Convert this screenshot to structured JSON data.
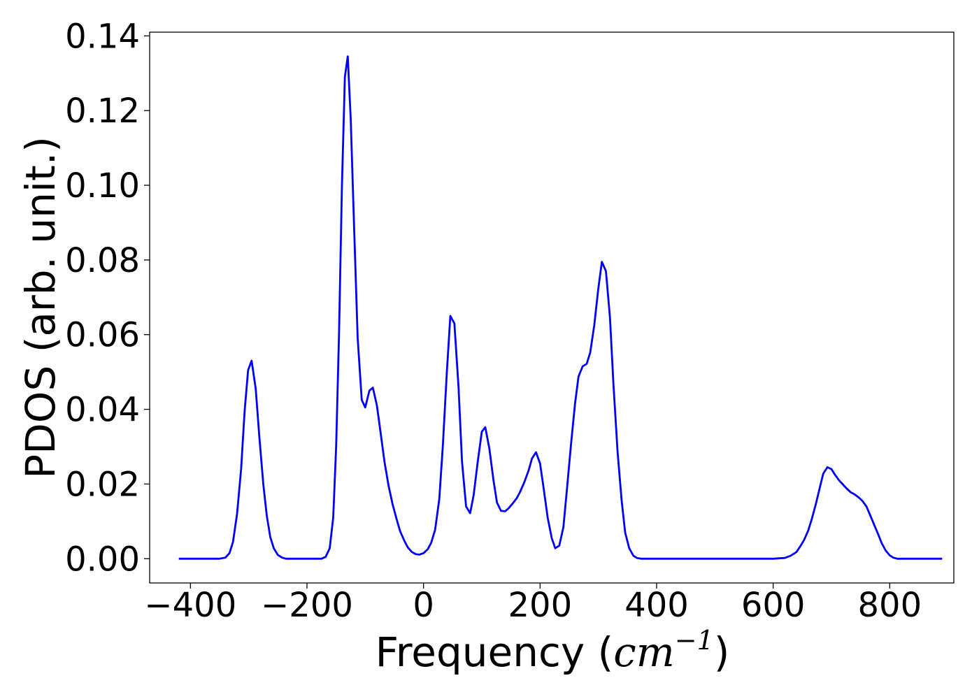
{
  "chart_data": {
    "type": "line",
    "xlabel": {
      "text": "Frequency (",
      "unit_base": "cm",
      "unit_exponent": "−1",
      "close": ")"
    },
    "ylabel": "PDOS (arb. unit.)",
    "xlim": [
      -470,
      910
    ],
    "ylim": [
      -0.0065,
      0.141
    ],
    "x_ticks": [
      -400,
      -200,
      0,
      200,
      400,
      600,
      800
    ],
    "x_tick_labels": [
      "−400",
      "−200",
      "0",
      "200",
      "400",
      "600",
      "800"
    ],
    "y_ticks": [
      0.0,
      0.02,
      0.04,
      0.06,
      0.08,
      0.1,
      0.12,
      0.14
    ],
    "y_tick_labels": [
      "0.00",
      "0.02",
      "0.04",
      "0.06",
      "0.08",
      "0.10",
      "0.12",
      "0.14"
    ],
    "grid": false,
    "series": [
      {
        "color": "#0000ff",
        "x": [
          -420,
          -380,
          -350,
          -340,
          -333,
          -327,
          -320,
          -313,
          -307,
          -301,
          -295,
          -288,
          -282,
          -275,
          -269,
          -263,
          -257,
          -250,
          -243,
          -236,
          -225,
          -200,
          -175,
          -168,
          -161,
          -155,
          -150,
          -145,
          -140,
          -135,
          -130,
          -125,
          -119,
          -113,
          -106,
          -100,
          -93,
          -87,
          -80,
          -73,
          -67,
          -60,
          -53,
          -46,
          -40,
          -33,
          -27,
          -20,
          -13,
          -7,
          0,
          7,
          13,
          20,
          27,
          33,
          40,
          46,
          53,
          60,
          66,
          73,
          80,
          86,
          93,
          100,
          106,
          113,
          120,
          126,
          133,
          140,
          146,
          153,
          160,
          166,
          173,
          180,
          186,
          193,
          200,
          206,
          213,
          220,
          226,
          233,
          240,
          246,
          253,
          260,
          266,
          273,
          280,
          286,
          293,
          300,
          306,
          313,
          320,
          326,
          333,
          340,
          346,
          353,
          360,
          366,
          373,
          380,
          400,
          500,
          600,
          620,
          630,
          640,
          646,
          653,
          660,
          666,
          673,
          680,
          686,
          693,
          700,
          706,
          713,
          720,
          726,
          733,
          740,
          746,
          753,
          760,
          766,
          773,
          780,
          786,
          793,
          800,
          806,
          813,
          820,
          850,
          890
        ],
        "y": [
          0.0,
          0.0,
          0.0,
          0.0003,
          0.0015,
          0.0045,
          0.012,
          0.024,
          0.0395,
          0.0505,
          0.053,
          0.0455,
          0.033,
          0.02,
          0.0115,
          0.0058,
          0.0028,
          0.001,
          0.0003,
          0.0,
          0.0,
          0.0,
          0.0,
          0.0005,
          0.0028,
          0.011,
          0.03,
          0.06,
          0.1,
          0.129,
          0.1345,
          0.118,
          0.088,
          0.059,
          0.0425,
          0.0405,
          0.045,
          0.0458,
          0.041,
          0.033,
          0.026,
          0.0195,
          0.0145,
          0.0105,
          0.0073,
          0.0048,
          0.003,
          0.0018,
          0.0012,
          0.0011,
          0.0015,
          0.0025,
          0.0042,
          0.0078,
          0.016,
          0.03,
          0.05,
          0.065,
          0.063,
          0.046,
          0.026,
          0.014,
          0.0122,
          0.017,
          0.026,
          0.034,
          0.0352,
          0.0295,
          0.021,
          0.015,
          0.0128,
          0.0127,
          0.0135,
          0.0148,
          0.0162,
          0.018,
          0.0205,
          0.0235,
          0.0268,
          0.0285,
          0.0255,
          0.019,
          0.011,
          0.0055,
          0.0028,
          0.0035,
          0.0085,
          0.0185,
          0.0305,
          0.0415,
          0.0488,
          0.0515,
          0.0522,
          0.0552,
          0.0625,
          0.0725,
          0.0795,
          0.077,
          0.0645,
          0.0465,
          0.0285,
          0.0155,
          0.007,
          0.0028,
          0.0008,
          0.0002,
          0.0,
          0.0,
          0.0,
          0.0,
          0.0,
          0.0002,
          0.0008,
          0.0018,
          0.0032,
          0.005,
          0.0075,
          0.0105,
          0.0145,
          0.019,
          0.0228,
          0.0245,
          0.024,
          0.0225,
          0.021,
          0.0198,
          0.0188,
          0.0178,
          0.0172,
          0.0165,
          0.0155,
          0.014,
          0.0118,
          0.0092,
          0.0066,
          0.0042,
          0.0022,
          0.0009,
          0.0003,
          0.0,
          0.0,
          0.0,
          0.0
        ]
      }
    ]
  }
}
